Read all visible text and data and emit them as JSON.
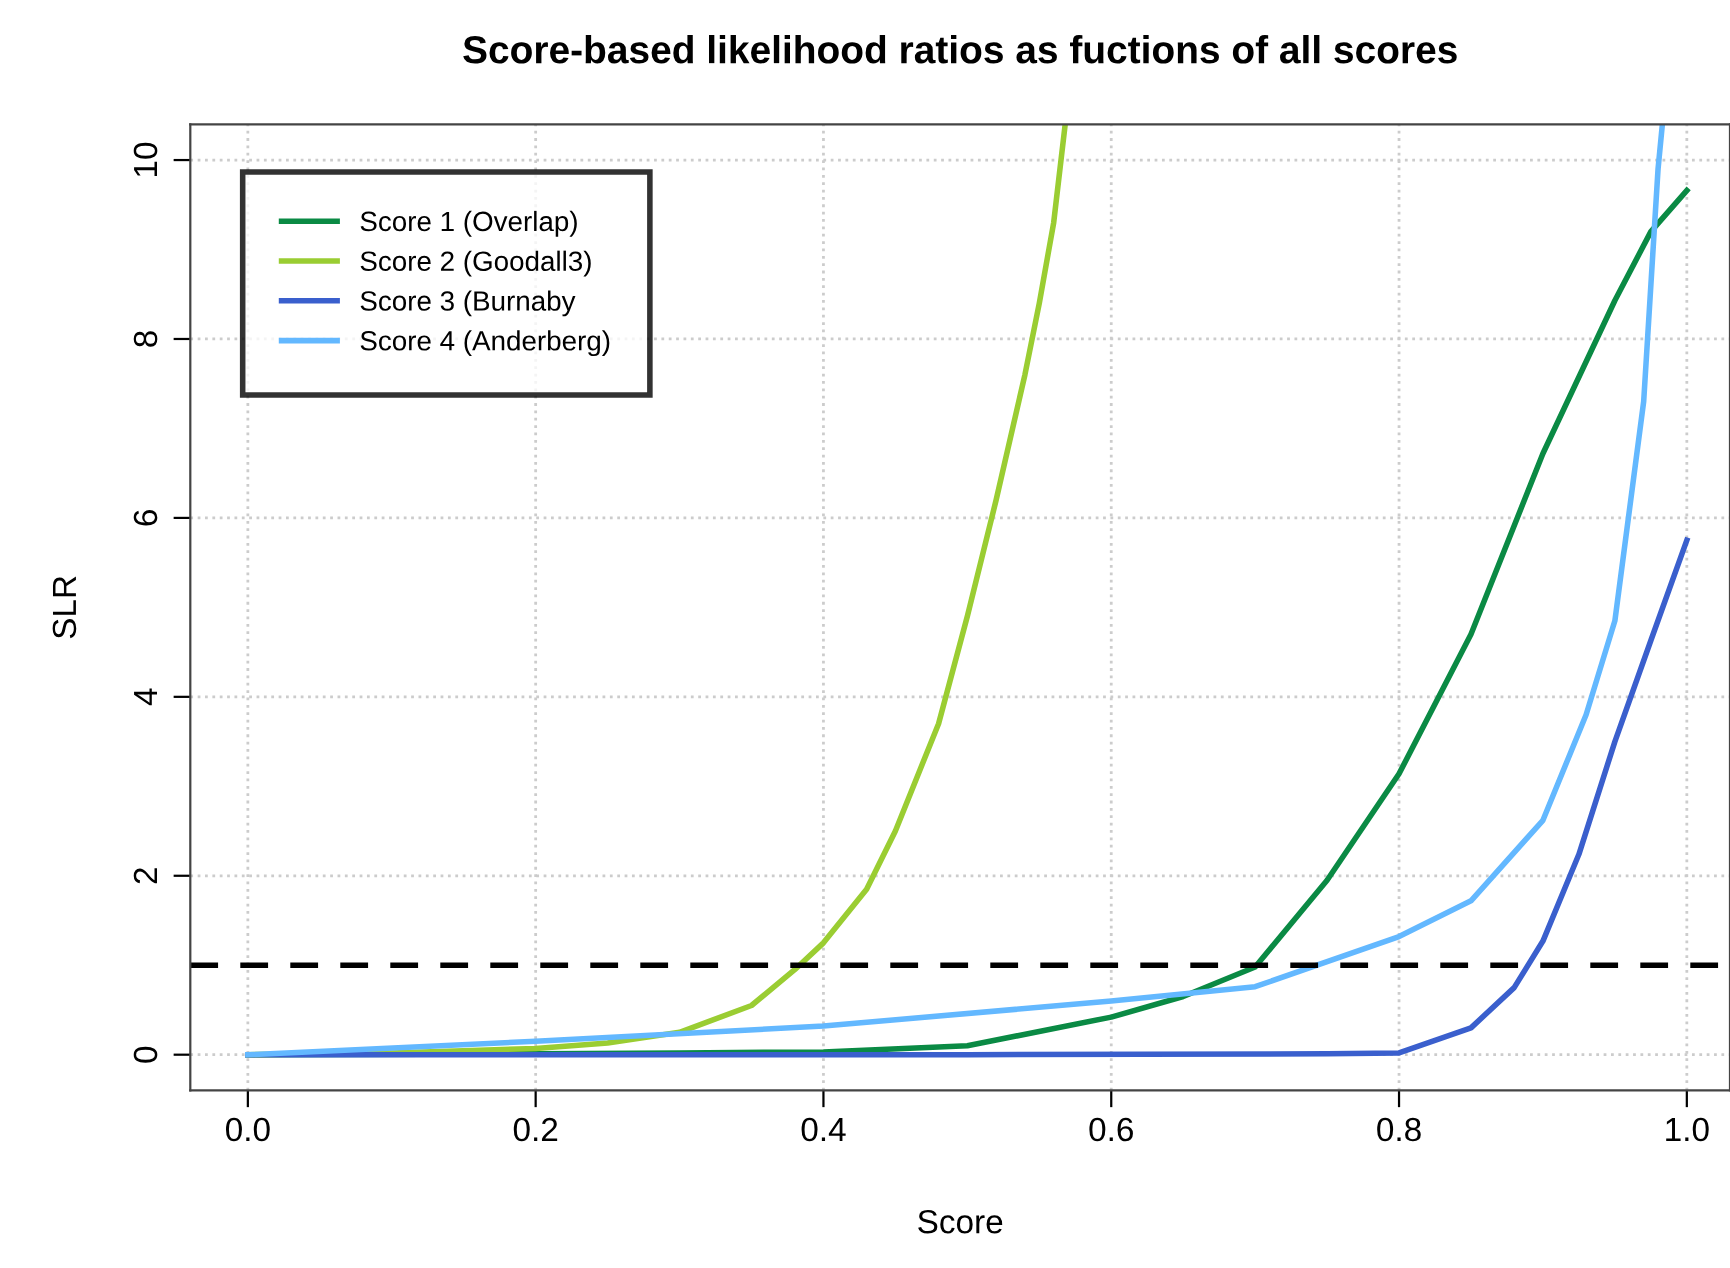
{
  "chart_data": {
    "type": "line",
    "title": "Score-based likelihood ratios as fuctions of all scores",
    "xlabel": "Score",
    "ylabel": "SLR",
    "xlim": [
      -0.04,
      1.03
    ],
    "ylim": [
      -0.4,
      10.4
    ],
    "xticks": [
      {
        "value": 0,
        "label": "0.0"
      },
      0.2,
      0.4,
      0.6,
      0.8,
      {
        "value": 1,
        "label": "1.0"
      }
    ],
    "yticks": [
      0,
      2,
      4,
      6,
      8,
      10
    ],
    "grid": true,
    "legend": "top left",
    "line_style": "solid",
    "marker": "none",
    "ref_lines": [
      {
        "axis": "y",
        "value": 1,
        "color": "#000000",
        "line_style": "dashed"
      }
    ],
    "series": [
      {
        "name": "Score 1 (Overlap)",
        "color": "#0a8a44",
        "x": [
          0,
          0.2,
          0.3,
          0.4,
          0.5,
          0.6,
          0.65,
          0.7,
          0.75,
          0.8,
          0.85,
          0.9,
          0.95,
          0.975,
          1.0
        ],
        "values": [
          0,
          0.01,
          0.02,
          0.03,
          0.1,
          0.42,
          0.65,
          0.98,
          1.95,
          3.14,
          4.7,
          6.72,
          8.43,
          9.2,
          9.66
        ]
      },
      {
        "name": "Score 2 (Goodall3)",
        "color": "#9acd32",
        "x": [
          0,
          0.1,
          0.2,
          0.25,
          0.3,
          0.35,
          0.38,
          0.4,
          0.43,
          0.45,
          0.48,
          0.5,
          0.52,
          0.54,
          0.55,
          0.56,
          0.568
        ],
        "values": [
          0,
          0.02,
          0.07,
          0.13,
          0.25,
          0.55,
          0.95,
          1.25,
          1.85,
          2.5,
          3.7,
          4.9,
          6.2,
          7.6,
          8.4,
          9.3,
          10.4
        ]
      },
      {
        "name": "Score 3 (Burnaby",
        "color": "#3a5fcd",
        "x": [
          0,
          0.5,
          0.75,
          0.8,
          0.85,
          0.88,
          0.9,
          0.925,
          0.95,
          0.975,
          1.0
        ],
        "values": [
          0,
          0,
          0.01,
          0.02,
          0.3,
          0.75,
          1.27,
          2.24,
          3.5,
          4.63,
          5.75
        ]
      },
      {
        "name": "Score 4 (Anderberg)",
        "color": "#63b8ff",
        "x": [
          0,
          0.2,
          0.4,
          0.6,
          0.7,
          0.8,
          0.85,
          0.9,
          0.93,
          0.95,
          0.97,
          0.98,
          0.983
        ],
        "values": [
          0,
          0.15,
          0.32,
          0.6,
          0.76,
          1.32,
          1.72,
          2.62,
          3.8,
          4.85,
          7.3,
          9.9,
          10.4
        ]
      }
    ]
  }
}
